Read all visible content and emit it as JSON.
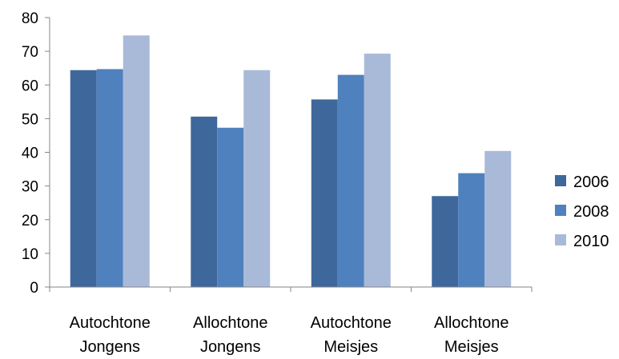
{
  "chart_data": {
    "type": "bar",
    "categories": [
      [
        "Autochtone",
        "Jongens"
      ],
      [
        "Allochtone",
        "Jongens"
      ],
      [
        "Autochtone",
        "Meisjes"
      ],
      [
        "Allochtone",
        "Meisjes"
      ]
    ],
    "series": [
      {
        "name": "2006",
        "color": "#3e689b",
        "values": [
          64.4,
          50.6,
          55.7,
          27.0
        ]
      },
      {
        "name": "2008",
        "color": "#4e81bd",
        "values": [
          64.7,
          47.3,
          63.0,
          33.8
        ]
      },
      {
        "name": "2010",
        "color": "#a9b9d8",
        "values": [
          74.7,
          64.4,
          69.3,
          40.4
        ]
      }
    ],
    "ylim": [
      0,
      80
    ],
    "yticks": [
      0,
      10,
      20,
      30,
      40,
      50,
      60,
      70,
      80
    ],
    "grid": false,
    "legend_position": "right",
    "title": "",
    "xlabel": "",
    "ylabel": ""
  }
}
